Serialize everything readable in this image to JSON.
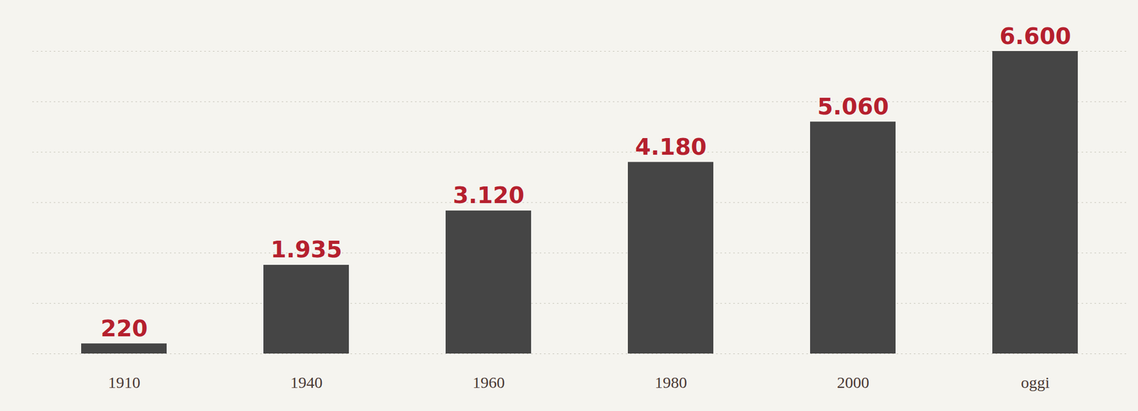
{
  "chart_data": {
    "type": "bar",
    "categories": [
      "1910",
      "1940",
      "1960",
      "1980",
      "2000",
      "oggi"
    ],
    "values": [
      220,
      1935,
      3120,
      4180,
      5060,
      6600
    ],
    "value_labels": [
      "220",
      "1.935",
      "3.120",
      "4.180",
      "5.060",
      "6.600"
    ],
    "color": "#454545",
    "ylim": [
      0,
      6600
    ],
    "yticks": [
      0,
      1100,
      2200,
      3300,
      4400,
      5500,
      6600
    ],
    "grid": true,
    "data_labels": true,
    "tick_labels": "x"
  }
}
